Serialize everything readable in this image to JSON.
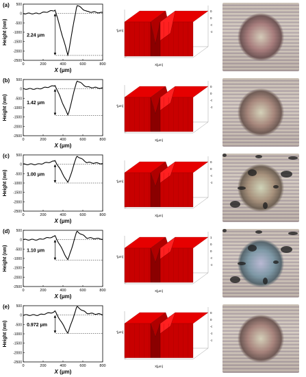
{
  "axis": {
    "ylabel": "Height (nm)",
    "xlabel_var": "X",
    "xlabel_unit": "(μm)",
    "xticks": [
      "0",
      "200",
      "400",
      "600",
      "800"
    ],
    "yticks": [
      "500",
      "0",
      "-500",
      "-1000",
      "-1500",
      "-2000",
      "-2500"
    ]
  },
  "surface_axis": {
    "x": "X[μm]",
    "y": "Y[μm]"
  },
  "panels": [
    {
      "label": "(a)",
      "depth": "2.24 μm",
      "z_ticks": [
        "0.5",
        "0",
        "-0.5",
        "-1.0"
      ],
      "depth_nm": 2240
    },
    {
      "label": "(b)",
      "depth": "1.42 μm",
      "z_ticks": [
        "0.5",
        "0",
        "-0.5",
        "-1"
      ],
      "depth_nm": 1420
    },
    {
      "label": "(c)",
      "depth": "1.00 μm",
      "z_ticks": [
        "0.5",
        "0",
        "-0.5",
        "-1.0"
      ],
      "depth_nm": 1000
    },
    {
      "label": "(d)",
      "depth": "1.10 μm",
      "z_ticks": [
        "1",
        "0.5",
        "0",
        "-0.5",
        "-1.0"
      ],
      "depth_nm": 1100
    },
    {
      "label": "(e)",
      "depth": "0.972 μm",
      "z_ticks": [
        "0.5",
        "0",
        "-0.5",
        "-1",
        "-2"
      ],
      "depth_nm": 972
    }
  ],
  "colors": {
    "surface": "#e60000",
    "profile": "#000000"
  }
}
